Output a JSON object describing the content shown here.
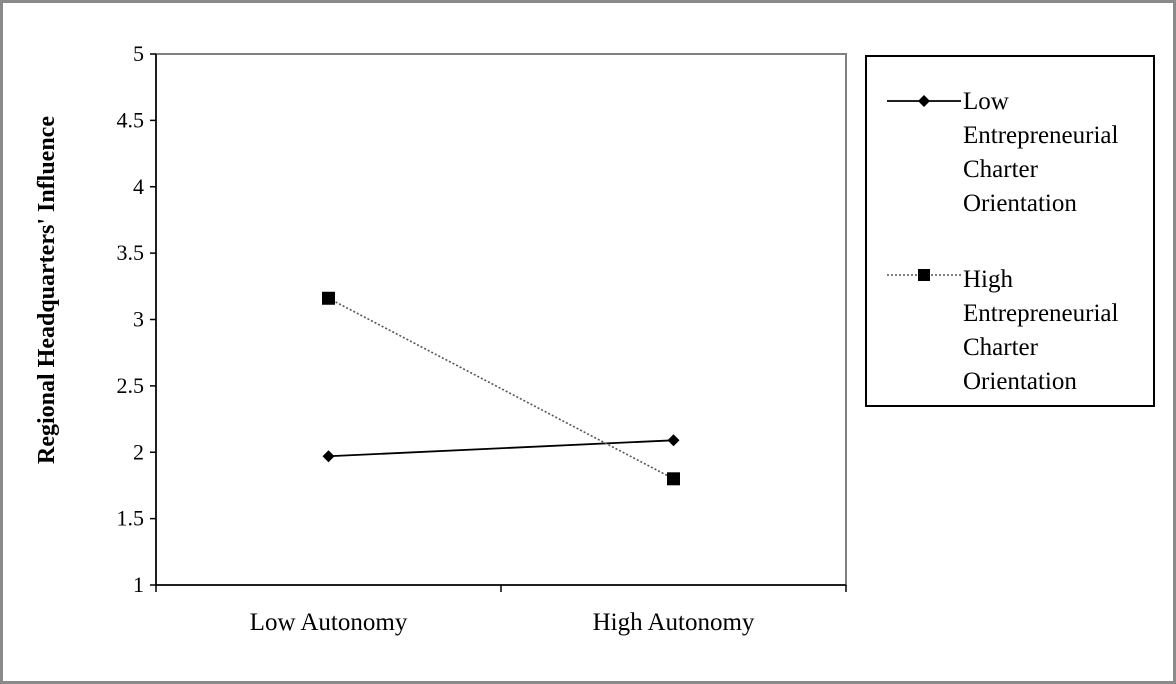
{
  "chart_data": {
    "type": "line",
    "title": "",
    "xlabel": "",
    "ylabel": "Regional Headquarters' Influence",
    "categories": [
      "Low Autonomy",
      "High Autonomy"
    ],
    "ylim": [
      1,
      5
    ],
    "yticks": [
      "1",
      "1.5",
      "2",
      "2.5",
      "3",
      "3.5",
      "4",
      "4.5",
      "5"
    ],
    "grid": false,
    "legend_position": "right",
    "series": [
      {
        "name": "Low Entrepreneurial Charter Orientation",
        "values": [
          1.97,
          2.09
        ],
        "marker": "diamond",
        "line_style": "solid",
        "color": "#000000"
      },
      {
        "name": "High Entrepreneurial Charter Orientation",
        "values": [
          3.16,
          1.8
        ],
        "marker": "square",
        "line_style": "dotted",
        "color": "#000000"
      }
    ]
  }
}
